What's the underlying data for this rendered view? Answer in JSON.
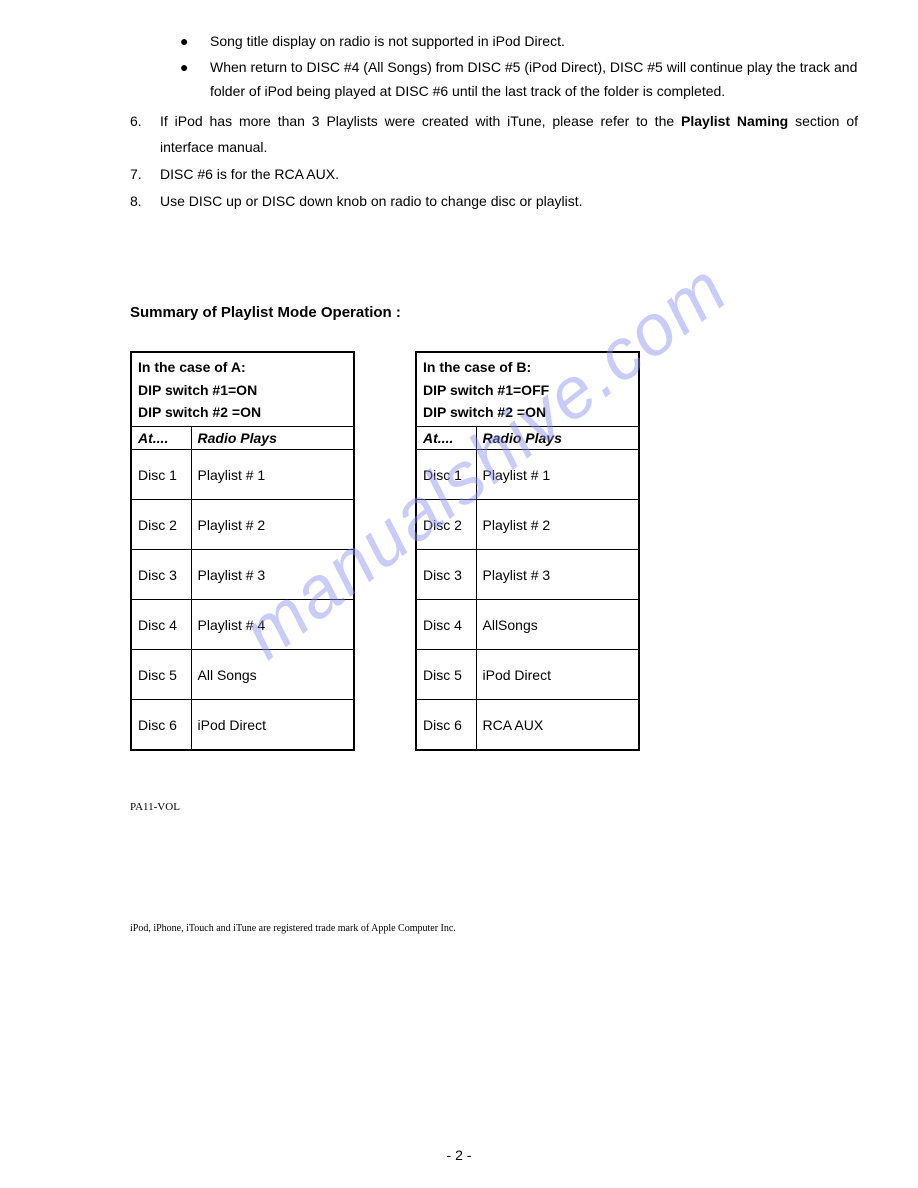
{
  "bullets": [
    "Song title display on radio is not supported in iPod Direct.",
    "When return to DISC #4 (All Songs) from DISC #5 (iPod Direct), DISC #5 will continue play the track and folder of iPod being played at DISC #6 until the last track of the folder is completed."
  ],
  "numbered": {
    "6": {
      "prefix": "If iPod has more than 3 Playlists were created with iTune, please refer to the ",
      "bold": "Playlist Naming",
      "suffix": " section of interface manual."
    },
    "7": "DISC #6 is for the RCA AUX.",
    "8": "Use DISC up or DISC down knob on radio to change disc or playlist."
  },
  "section_title": "Summary of Playlist Mode Operation :",
  "table_a": {
    "header_line1": "In the case of   A:",
    "header_line2": "DIP switch #1=ON",
    "header_line3": "DIP switch #2 =ON",
    "col1": "At....",
    "col2": "Radio Plays",
    "rows": [
      {
        "at": "Disc 1",
        "plays": "Playlist   # 1"
      },
      {
        "at": "Disc 2",
        "plays": "Playlist   # 2"
      },
      {
        "at": "Disc 3",
        "plays": "Playlist   # 3"
      },
      {
        "at": "Disc 4",
        "plays": "Playlist # 4"
      },
      {
        "at": "Disc 5",
        "plays": "All Songs"
      },
      {
        "at": "Disc 6",
        "plays": "iPod Direct"
      }
    ]
  },
  "table_b": {
    "header_line1": "In the case of B:",
    "header_line2": "DIP switch #1=OFF",
    "header_line3": "DIP switch #2 =ON",
    "col1": "At....",
    "col2": "Radio Plays",
    "rows": [
      {
        "at": "Disc 1",
        "plays": "Playlist   # 1"
      },
      {
        "at": "Disc 2",
        "plays": "Playlist   # 2"
      },
      {
        "at": "Disc 3",
        "plays": "Playlist   # 3"
      },
      {
        "at": "Disc 4",
        "plays": "AllSongs"
      },
      {
        "at": "Disc 5",
        "plays": "iPod Direct"
      },
      {
        "at": "Disc 6",
        "plays": "RCA AUX"
      }
    ]
  },
  "footer_code": "PA11-VOL",
  "trademark": "iPod, iPhone, iTouch and iTune are registered trade mark of Apple Computer Inc.",
  "page_number": "- 2 -",
  "watermark": "manualshive.com",
  "colors": {
    "text": "#000000",
    "background": "#ffffff",
    "watermark": "#8a8ff0"
  }
}
